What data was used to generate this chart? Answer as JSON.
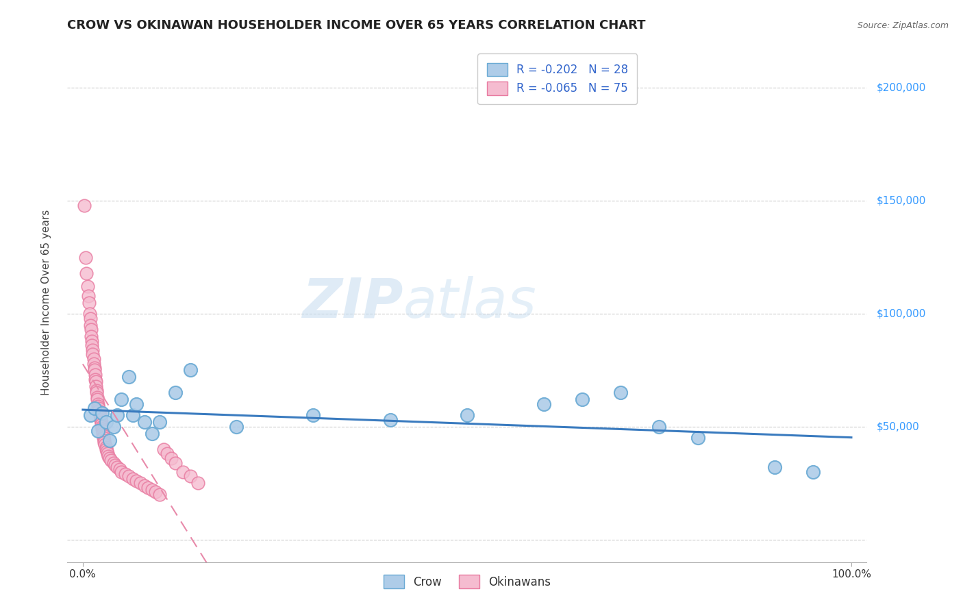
{
  "title": "CROW VS OKINAWAN HOUSEHOLDER INCOME OVER 65 YEARS CORRELATION CHART",
  "source": "Source: ZipAtlas.com",
  "ylabel": "Householder Income Over 65 years",
  "legend_bottom": [
    "Crow",
    "Okinawans"
  ],
  "crow_R": -0.202,
  "crow_N": 28,
  "okinawan_R": -0.065,
  "okinawan_N": 75,
  "yticks": [
    0,
    50000,
    100000,
    150000,
    200000
  ],
  "ytick_labels": [
    "",
    "$50,000",
    "$100,000",
    "$150,000",
    "$200,000"
  ],
  "xlim": [
    -0.02,
    1.02
  ],
  "ylim": [
    -10000,
    220000
  ],
  "crow_color": "#aecce8",
  "crow_edge": "#6aaad4",
  "okinawan_color": "#f5bcd0",
  "okinawan_edge": "#e87aa0",
  "trendline_crow_color": "#3a7bbf",
  "trendline_okinawan_color": "#e88aaa",
  "background_color": "#ffffff",
  "grid_color": "#cccccc",
  "title_color": "#222222",
  "source_color": "#666666",
  "ytick_color": "#3399ff",
  "xtick_color": "#333333",
  "crow_x": [
    0.01,
    0.015,
    0.02,
    0.025,
    0.03,
    0.035,
    0.04,
    0.045,
    0.05,
    0.06,
    0.065,
    0.07,
    0.08,
    0.09,
    0.1,
    0.12,
    0.14,
    0.2,
    0.3,
    0.4,
    0.5,
    0.6,
    0.65,
    0.7,
    0.75,
    0.8,
    0.9,
    0.95
  ],
  "crow_y": [
    55000,
    58000,
    48000,
    56000,
    52000,
    44000,
    50000,
    55000,
    62000,
    72000,
    55000,
    60000,
    52000,
    47000,
    52000,
    65000,
    75000,
    50000,
    55000,
    53000,
    55000,
    60000,
    62000,
    65000,
    50000,
    45000,
    32000,
    30000
  ],
  "okinawan_x": [
    0.002,
    0.004,
    0.005,
    0.006,
    0.007,
    0.008,
    0.009,
    0.01,
    0.01,
    0.011,
    0.011,
    0.012,
    0.012,
    0.013,
    0.013,
    0.014,
    0.014,
    0.015,
    0.015,
    0.016,
    0.016,
    0.017,
    0.017,
    0.018,
    0.018,
    0.019,
    0.019,
    0.02,
    0.02,
    0.021,
    0.021,
    0.022,
    0.022,
    0.023,
    0.023,
    0.024,
    0.024,
    0.025,
    0.025,
    0.026,
    0.026,
    0.027,
    0.027,
    0.028,
    0.028,
    0.029,
    0.03,
    0.03,
    0.031,
    0.032,
    0.033,
    0.035,
    0.037,
    0.04,
    0.042,
    0.045,
    0.048,
    0.05,
    0.055,
    0.06,
    0.065,
    0.07,
    0.075,
    0.08,
    0.085,
    0.09,
    0.095,
    0.1,
    0.105,
    0.11,
    0.115,
    0.12,
    0.13,
    0.14,
    0.15
  ],
  "okinawan_y": [
    148000,
    125000,
    118000,
    112000,
    108000,
    105000,
    100000,
    98000,
    95000,
    93000,
    90000,
    88000,
    86000,
    84000,
    82000,
    80000,
    78000,
    76000,
    75000,
    73000,
    71000,
    70000,
    68000,
    66000,
    65000,
    63000,
    62000,
    60000,
    59000,
    58000,
    57000,
    56000,
    55000,
    54000,
    53000,
    52000,
    51000,
    50000,
    49000,
    48000,
    47000,
    46000,
    45000,
    44000,
    43000,
    42000,
    41000,
    40000,
    39000,
    38000,
    37000,
    36000,
    35000,
    34000,
    33000,
    32000,
    31000,
    30000,
    29000,
    28000,
    27000,
    26000,
    25000,
    24000,
    23000,
    22000,
    21000,
    20000,
    40000,
    38000,
    36000,
    34000,
    30000,
    28000,
    25000
  ]
}
